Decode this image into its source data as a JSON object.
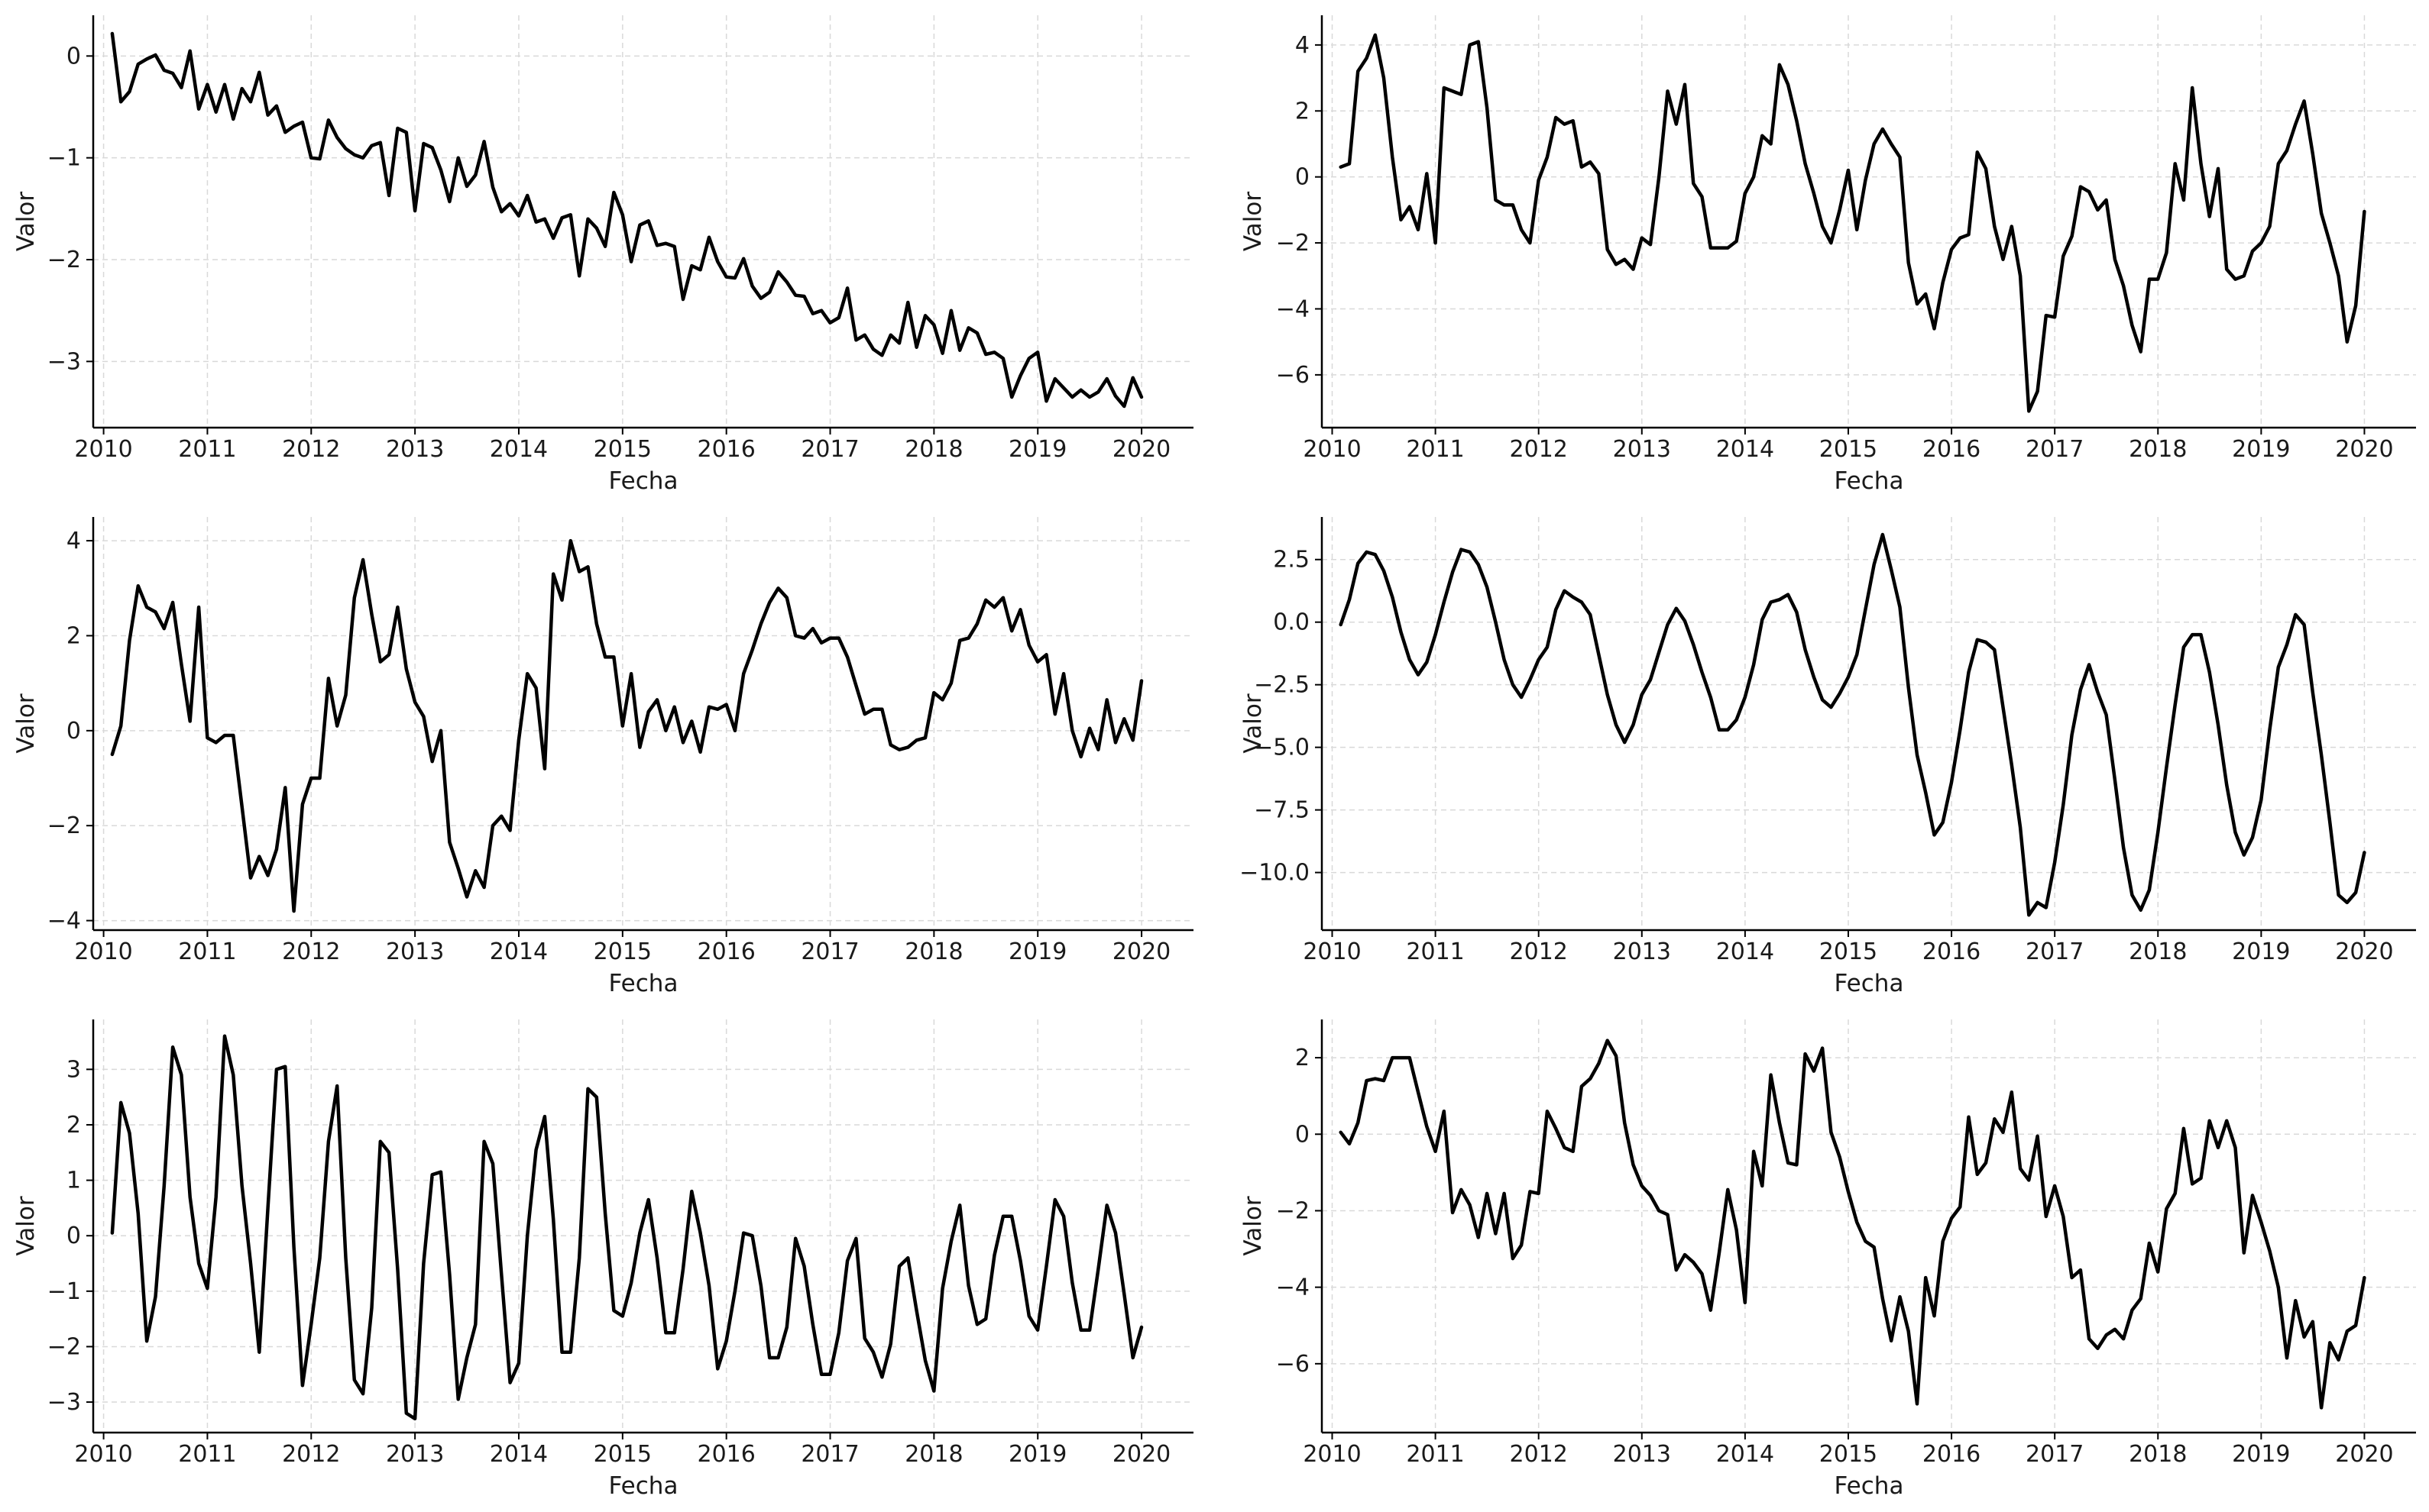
{
  "figure": {
    "background": "#ffffff",
    "line_color": "#000000",
    "grid_color": "#d9d9d9",
    "axis_color": "#000000"
  },
  "chart_data": [
    {
      "type": "line",
      "xlabel": "Fecha",
      "ylabel": "Valor",
      "xlim": [
        2009.9,
        2020.5
      ],
      "ylim": [
        -3.65,
        0.4
      ],
      "yticks": [
        0,
        -1,
        -2,
        -3
      ],
      "ytick_labels": [
        "0",
        "−1",
        "−2",
        "−3"
      ],
      "xticks": [
        2010,
        2011,
        2012,
        2013,
        2014,
        2015,
        2016,
        2017,
        2018,
        2019,
        2020
      ],
      "xtick_labels": [
        "2010",
        "2011",
        "2012",
        "2013",
        "2014",
        "2015",
        "2016",
        "2017",
        "2018",
        "2019",
        "2020"
      ],
      "grid": true,
      "x_start": 2010.083,
      "x_step": 0.08333,
      "values": [
        0.22,
        -0.45,
        -0.35,
        -0.08,
        -0.03,
        0.01,
        -0.14,
        -0.17,
        -0.31,
        0.05,
        -0.52,
        -0.28,
        -0.55,
        -0.28,
        -0.62,
        -0.32,
        -0.45,
        -0.16,
        -0.58,
        -0.49,
        -0.75,
        -0.69,
        -0.65,
        -1.0,
        -1.01,
        -0.63,
        -0.8,
        -0.91,
        -0.97,
        -1.0,
        -0.88,
        -0.85,
        -1.37,
        -0.71,
        -0.75,
        -1.52,
        -0.86,
        -0.9,
        -1.12,
        -1.43,
        -1.0,
        -1.28,
        -1.17,
        -0.84,
        -1.29,
        -1.53,
        -1.45,
        -1.57,
        -1.37,
        -1.63,
        -1.6,
        -1.79,
        -1.59,
        -1.56,
        -2.16,
        -1.6,
        -1.69,
        -1.87,
        -1.34,
        -1.56,
        -2.02,
        -1.66,
        -1.62,
        -1.86,
        -1.84,
        -1.87,
        -2.39,
        -2.06,
        -2.1,
        -1.78,
        -2.02,
        -2.17,
        -2.18,
        -1.99,
        -2.26,
        -2.38,
        -2.32,
        -2.12,
        -2.22,
        -2.35,
        -2.36,
        -2.53,
        -2.5,
        -2.62,
        -2.57,
        -2.28,
        -2.79,
        -2.74,
        -2.88,
        -2.94,
        -2.74,
        -2.82,
        -2.42,
        -2.86,
        -2.55,
        -2.64,
        -2.92,
        -2.5,
        -2.89,
        -2.67,
        -2.72,
        -2.93,
        -2.91,
        -2.97,
        -3.35,
        -3.14,
        -2.97,
        -2.91,
        -3.39,
        -3.17,
        -3.26,
        -3.35,
        -3.28,
        -3.35,
        -3.3,
        -3.17,
        -3.34,
        -3.44,
        -3.16,
        -3.35
      ]
    },
    {
      "type": "line",
      "xlabel": "Fecha",
      "ylabel": "Valor",
      "xlim": [
        2009.9,
        2020.5
      ],
      "ylim": [
        -7.6,
        4.9
      ],
      "yticks": [
        4,
        2,
        0,
        -2,
        -4,
        -6
      ],
      "ytick_labels": [
        "4",
        "2",
        "0",
        "−2",
        "−4",
        "−6"
      ],
      "xticks": [
        2010,
        2011,
        2012,
        2013,
        2014,
        2015,
        2016,
        2017,
        2018,
        2019,
        2020
      ],
      "xtick_labels": [
        "2010",
        "2011",
        "2012",
        "2013",
        "2014",
        "2015",
        "2016",
        "2017",
        "2018",
        "2019",
        "2020"
      ],
      "grid": true,
      "x_start": 2010.083,
      "x_step": 0.08333,
      "values": [
        0.3,
        0.4,
        3.2,
        3.6,
        4.3,
        3.0,
        0.6,
        -1.3,
        -0.9,
        -1.6,
        0.1,
        -2.0,
        2.7,
        2.6,
        2.5,
        4.0,
        4.1,
        2.1,
        -0.7,
        -0.85,
        -0.85,
        -1.6,
        -2.0,
        -0.1,
        0.6,
        1.8,
        1.6,
        1.7,
        0.3,
        0.45,
        0.1,
        -2.2,
        -2.65,
        -2.5,
        -2.8,
        -1.85,
        -2.05,
        0.0,
        2.6,
        1.6,
        2.8,
        -0.2,
        -0.6,
        -2.15,
        -2.15,
        -2.15,
        -1.95,
        -0.5,
        0.0,
        1.25,
        1.0,
        3.4,
        2.8,
        1.7,
        0.4,
        -0.5,
        -1.5,
        -2.0,
        -1.0,
        0.2,
        -1.6,
        -0.1,
        1.0,
        1.45,
        1.0,
        0.6,
        -2.6,
        -3.85,
        -3.55,
        -4.6,
        -3.2,
        -2.2,
        -1.85,
        -1.75,
        0.75,
        0.25,
        -1.5,
        -2.5,
        -1.5,
        -3.0,
        -7.1,
        -6.5,
        -4.2,
        -4.25,
        -2.4,
        -1.8,
        -0.3,
        -0.45,
        -1.0,
        -0.7,
        -2.5,
        -3.3,
        -4.5,
        -5.3,
        -3.1,
        -3.1,
        -2.3,
        0.4,
        -0.7,
        2.7,
        0.4,
        -1.2,
        0.25,
        -2.8,
        -3.1,
        -3.0,
        -2.25,
        -2.0,
        -1.5,
        0.4,
        0.8,
        1.6,
        2.3,
        0.7,
        -1.1,
        -2.0,
        -3.0,
        -5.0,
        -3.9,
        -1.05
      ]
    },
    {
      "type": "line",
      "xlabel": "Fecha",
      "ylabel": "Valor",
      "xlim": [
        2009.9,
        2020.5
      ],
      "ylim": [
        -4.2,
        4.5
      ],
      "yticks": [
        4,
        2,
        0,
        -2,
        -4
      ],
      "ytick_labels": [
        "4",
        "2",
        "0",
        "−2",
        "−4"
      ],
      "xticks": [
        2010,
        2011,
        2012,
        2013,
        2014,
        2015,
        2016,
        2017,
        2018,
        2019,
        2020
      ],
      "xtick_labels": [
        "2010",
        "2011",
        "2012",
        "2013",
        "2014",
        "2015",
        "2016",
        "2017",
        "2018",
        "2019",
        "2020"
      ],
      "grid": true,
      "x_start": 2010.083,
      "x_step": 0.08333,
      "values": [
        -0.5,
        0.1,
        1.9,
        3.05,
        2.6,
        2.5,
        2.15,
        2.7,
        1.4,
        0.2,
        2.6,
        -0.15,
        -0.25,
        -0.1,
        -0.1,
        -1.6,
        -3.1,
        -2.65,
        -3.05,
        -2.5,
        -1.2,
        -3.8,
        -1.55,
        -1.0,
        -1.0,
        1.1,
        0.1,
        0.75,
        2.8,
        3.6,
        2.45,
        1.45,
        1.6,
        2.6,
        1.3,
        0.6,
        0.3,
        -0.65,
        0.0,
        -2.35,
        -2.9,
        -3.5,
        -2.95,
        -3.3,
        -2.0,
        -1.8,
        -2.1,
        -0.2,
        1.2,
        0.9,
        -0.8,
        3.3,
        2.75,
        4.0,
        3.35,
        3.45,
        2.25,
        1.55,
        1.55,
        0.1,
        1.2,
        -0.35,
        0.4,
        0.65,
        0.0,
        0.5,
        -0.25,
        0.2,
        -0.45,
        0.5,
        0.45,
        0.55,
        0.0,
        1.2,
        1.7,
        2.25,
        2.7,
        3.0,
        2.8,
        2.0,
        1.95,
        2.15,
        1.85,
        1.95,
        1.95,
        1.55,
        0.95,
        0.35,
        0.45,
        0.45,
        -0.3,
        -0.4,
        -0.35,
        -0.2,
        -0.15,
        0.8,
        0.65,
        1.0,
        1.9,
        1.95,
        2.25,
        2.75,
        2.6,
        2.8,
        2.1,
        2.55,
        1.8,
        1.45,
        1.6,
        0.35,
        1.2,
        0.0,
        -0.55,
        0.05,
        -0.4,
        0.65,
        -0.25,
        0.25,
        -0.2,
        1.05
      ]
    },
    {
      "type": "line",
      "xlabel": "Fecha",
      "ylabel": "Valor",
      "xlim": [
        2009.9,
        2020.5
      ],
      "ylim": [
        -12.3,
        4.2
      ],
      "yticks": [
        2.5,
        0.0,
        -2.5,
        -5.0,
        -7.5,
        -10.0
      ],
      "ytick_labels": [
        "2.5",
        "0.0",
        "−2.5",
        "−5.0",
        "−7.5",
        "−10.0"
      ],
      "xticks": [
        2010,
        2011,
        2012,
        2013,
        2014,
        2015,
        2016,
        2017,
        2018,
        2019,
        2020
      ],
      "xtick_labels": [
        "2010",
        "2011",
        "2012",
        "2013",
        "2014",
        "2015",
        "2016",
        "2017",
        "2018",
        "2019",
        "2020"
      ],
      "grid": true,
      "x_start": 2010.083,
      "x_step": 0.08333,
      "values": [
        -0.1,
        0.9,
        2.35,
        2.8,
        2.7,
        2.05,
        1.0,
        -0.4,
        -1.5,
        -2.1,
        -1.6,
        -0.5,
        0.8,
        2.0,
        2.9,
        2.8,
        2.3,
        1.4,
        0.0,
        -1.5,
        -2.5,
        -3.0,
        -2.3,
        -1.5,
        -1.0,
        0.5,
        1.25,
        1.0,
        0.8,
        0.3,
        -1.3,
        -2.9,
        -4.1,
        -4.8,
        -4.1,
        -2.9,
        -2.3,
        -1.2,
        -0.1,
        0.55,
        0.05,
        -0.9,
        -2.0,
        -3.0,
        -4.3,
        -4.3,
        -3.9,
        -3.0,
        -1.7,
        0.1,
        0.8,
        0.9,
        1.1,
        0.4,
        -1.1,
        -2.2,
        -3.1,
        -3.4,
        -2.85,
        -2.2,
        -1.3,
        0.5,
        2.3,
        3.5,
        2.1,
        0.6,
        -2.6,
        -5.3,
        -6.8,
        -8.5,
        -8.0,
        -6.4,
        -4.3,
        -2.0,
        -0.7,
        -0.8,
        -1.1,
        -3.4,
        -5.7,
        -8.2,
        -11.7,
        -11.2,
        -11.4,
        -9.6,
        -7.3,
        -4.5,
        -2.7,
        -1.7,
        -2.8,
        -3.7,
        -6.3,
        -9.0,
        -10.9,
        -11.5,
        -10.7,
        -8.4,
        -5.8,
        -3.3,
        -1.0,
        -0.5,
        -0.5,
        -2.0,
        -4.1,
        -6.5,
        -8.4,
        -9.3,
        -8.6,
        -7.1,
        -4.3,
        -1.8,
        -0.9,
        0.3,
        -0.1,
        -2.8,
        -5.3,
        -8.0,
        -10.9,
        -11.2,
        -10.8,
        -9.2
      ]
    },
    {
      "type": "line",
      "xlabel": "Fecha",
      "ylabel": "Valor",
      "xlim": [
        2009.9,
        2020.5
      ],
      "ylim": [
        -3.55,
        3.9
      ],
      "yticks": [
        3,
        2,
        1,
        0,
        -1,
        -2,
        -3
      ],
      "ytick_labels": [
        "3",
        "2",
        "1",
        "0",
        "−1",
        "−2",
        "−3"
      ],
      "xticks": [
        2010,
        2011,
        2012,
        2013,
        2014,
        2015,
        2016,
        2017,
        2018,
        2019,
        2020
      ],
      "xtick_labels": [
        "2010",
        "2011",
        "2012",
        "2013",
        "2014",
        "2015",
        "2016",
        "2017",
        "2018",
        "2019",
        "2020"
      ],
      "grid": true,
      "x_start": 2010.083,
      "x_step": 0.08333,
      "values": [
        0.05,
        2.4,
        1.85,
        0.4,
        -1.9,
        -1.1,
        0.9,
        3.4,
        2.9,
        0.7,
        -0.5,
        -0.95,
        0.7,
        3.6,
        2.9,
        0.9,
        -0.5,
        -2.1,
        0.5,
        3.0,
        3.05,
        -0.2,
        -2.7,
        -1.6,
        -0.4,
        1.7,
        2.7,
        -0.4,
        -2.6,
        -2.85,
        -1.3,
        1.7,
        1.5,
        -0.6,
        -3.2,
        -3.3,
        -0.5,
        1.1,
        1.15,
        -0.7,
        -2.95,
        -2.2,
        -1.6,
        1.7,
        1.3,
        -0.7,
        -2.65,
        -2.3,
        0.0,
        1.55,
        2.15,
        0.3,
        -2.1,
        -2.1,
        -0.4,
        2.65,
        2.5,
        0.4,
        -1.35,
        -1.45,
        -0.85,
        0.05,
        0.65,
        -0.4,
        -1.75,
        -1.75,
        -0.6,
        0.8,
        0.05,
        -0.9,
        -2.4,
        -1.9,
        -1.0,
        0.05,
        0.0,
        -0.9,
        -2.2,
        -2.2,
        -1.65,
        -0.05,
        -0.55,
        -1.6,
        -2.5,
        -2.5,
        -1.75,
        -0.45,
        -0.05,
        -1.85,
        -2.1,
        -2.55,
        -1.95,
        -0.55,
        -0.4,
        -1.35,
        -2.25,
        -2.8,
        -0.95,
        -0.1,
        0.55,
        -0.9,
        -1.6,
        -1.5,
        -0.35,
        0.35,
        0.35,
        -0.45,
        -1.45,
        -1.7,
        -0.55,
        0.65,
        0.35,
        -0.85,
        -1.7,
        -1.7,
        -0.6,
        0.55,
        0.05,
        -1.05,
        -2.2,
        -1.65
      ]
    },
    {
      "type": "line",
      "xlabel": "Fecha",
      "ylabel": "Valor",
      "xlim": [
        2009.9,
        2020.5
      ],
      "ylim": [
        -7.8,
        3.0
      ],
      "yticks": [
        2,
        0,
        -2,
        -4,
        -6
      ],
      "ytick_labels": [
        "2",
        "0",
        "−2",
        "−4",
        "−6"
      ],
      "xticks": [
        2010,
        2011,
        2012,
        2013,
        2014,
        2015,
        2016,
        2017,
        2018,
        2019,
        2020
      ],
      "xtick_labels": [
        "2010",
        "2011",
        "2012",
        "2013",
        "2014",
        "2015",
        "2016",
        "2017",
        "2018",
        "2019",
        "2020"
      ],
      "grid": true,
      "x_start": 2010.083,
      "x_step": 0.08333,
      "values": [
        0.05,
        -0.25,
        0.3,
        1.4,
        1.45,
        1.4,
        2.0,
        2.0,
        2.0,
        1.1,
        0.2,
        -0.45,
        0.6,
        -2.05,
        -1.45,
        -1.85,
        -2.7,
        -1.55,
        -2.6,
        -1.55,
        -3.25,
        -2.9,
        -1.5,
        -1.55,
        0.6,
        0.15,
        -0.35,
        -0.45,
        1.25,
        1.45,
        1.85,
        2.45,
        2.05,
        0.3,
        -0.8,
        -1.35,
        -1.6,
        -2.0,
        -2.1,
        -3.55,
        -3.15,
        -3.35,
        -3.65,
        -4.6,
        -3.1,
        -1.45,
        -2.5,
        -4.4,
        -0.45,
        -1.35,
        1.55,
        0.3,
        -0.75,
        -0.8,
        2.1,
        1.65,
        2.25,
        0.05,
        -0.6,
        -1.5,
        -2.3,
        -2.8,
        -2.95,
        -4.3,
        -5.4,
        -4.25,
        -5.15,
        -7.05,
        -3.75,
        -4.75,
        -2.8,
        -2.2,
        -1.9,
        0.45,
        -1.05,
        -0.75,
        0.4,
        0.05,
        1.1,
        -0.9,
        -1.2,
        -0.05,
        -2.15,
        -1.35,
        -2.15,
        -3.75,
        -3.55,
        -5.35,
        -5.6,
        -5.25,
        -5.1,
        -5.35,
        -4.6,
        -4.3,
        -2.85,
        -3.6,
        -1.95,
        -1.55,
        0.15,
        -1.3,
        -1.15,
        0.35,
        -0.35,
        0.35,
        -0.35,
        -3.1,
        -1.6,
        -2.3,
        -3.05,
        -4.0,
        -5.85,
        -4.35,
        -5.3,
        -4.9,
        -7.15,
        -5.45,
        -5.9,
        -5.15,
        -5.0,
        -3.75
      ]
    }
  ]
}
